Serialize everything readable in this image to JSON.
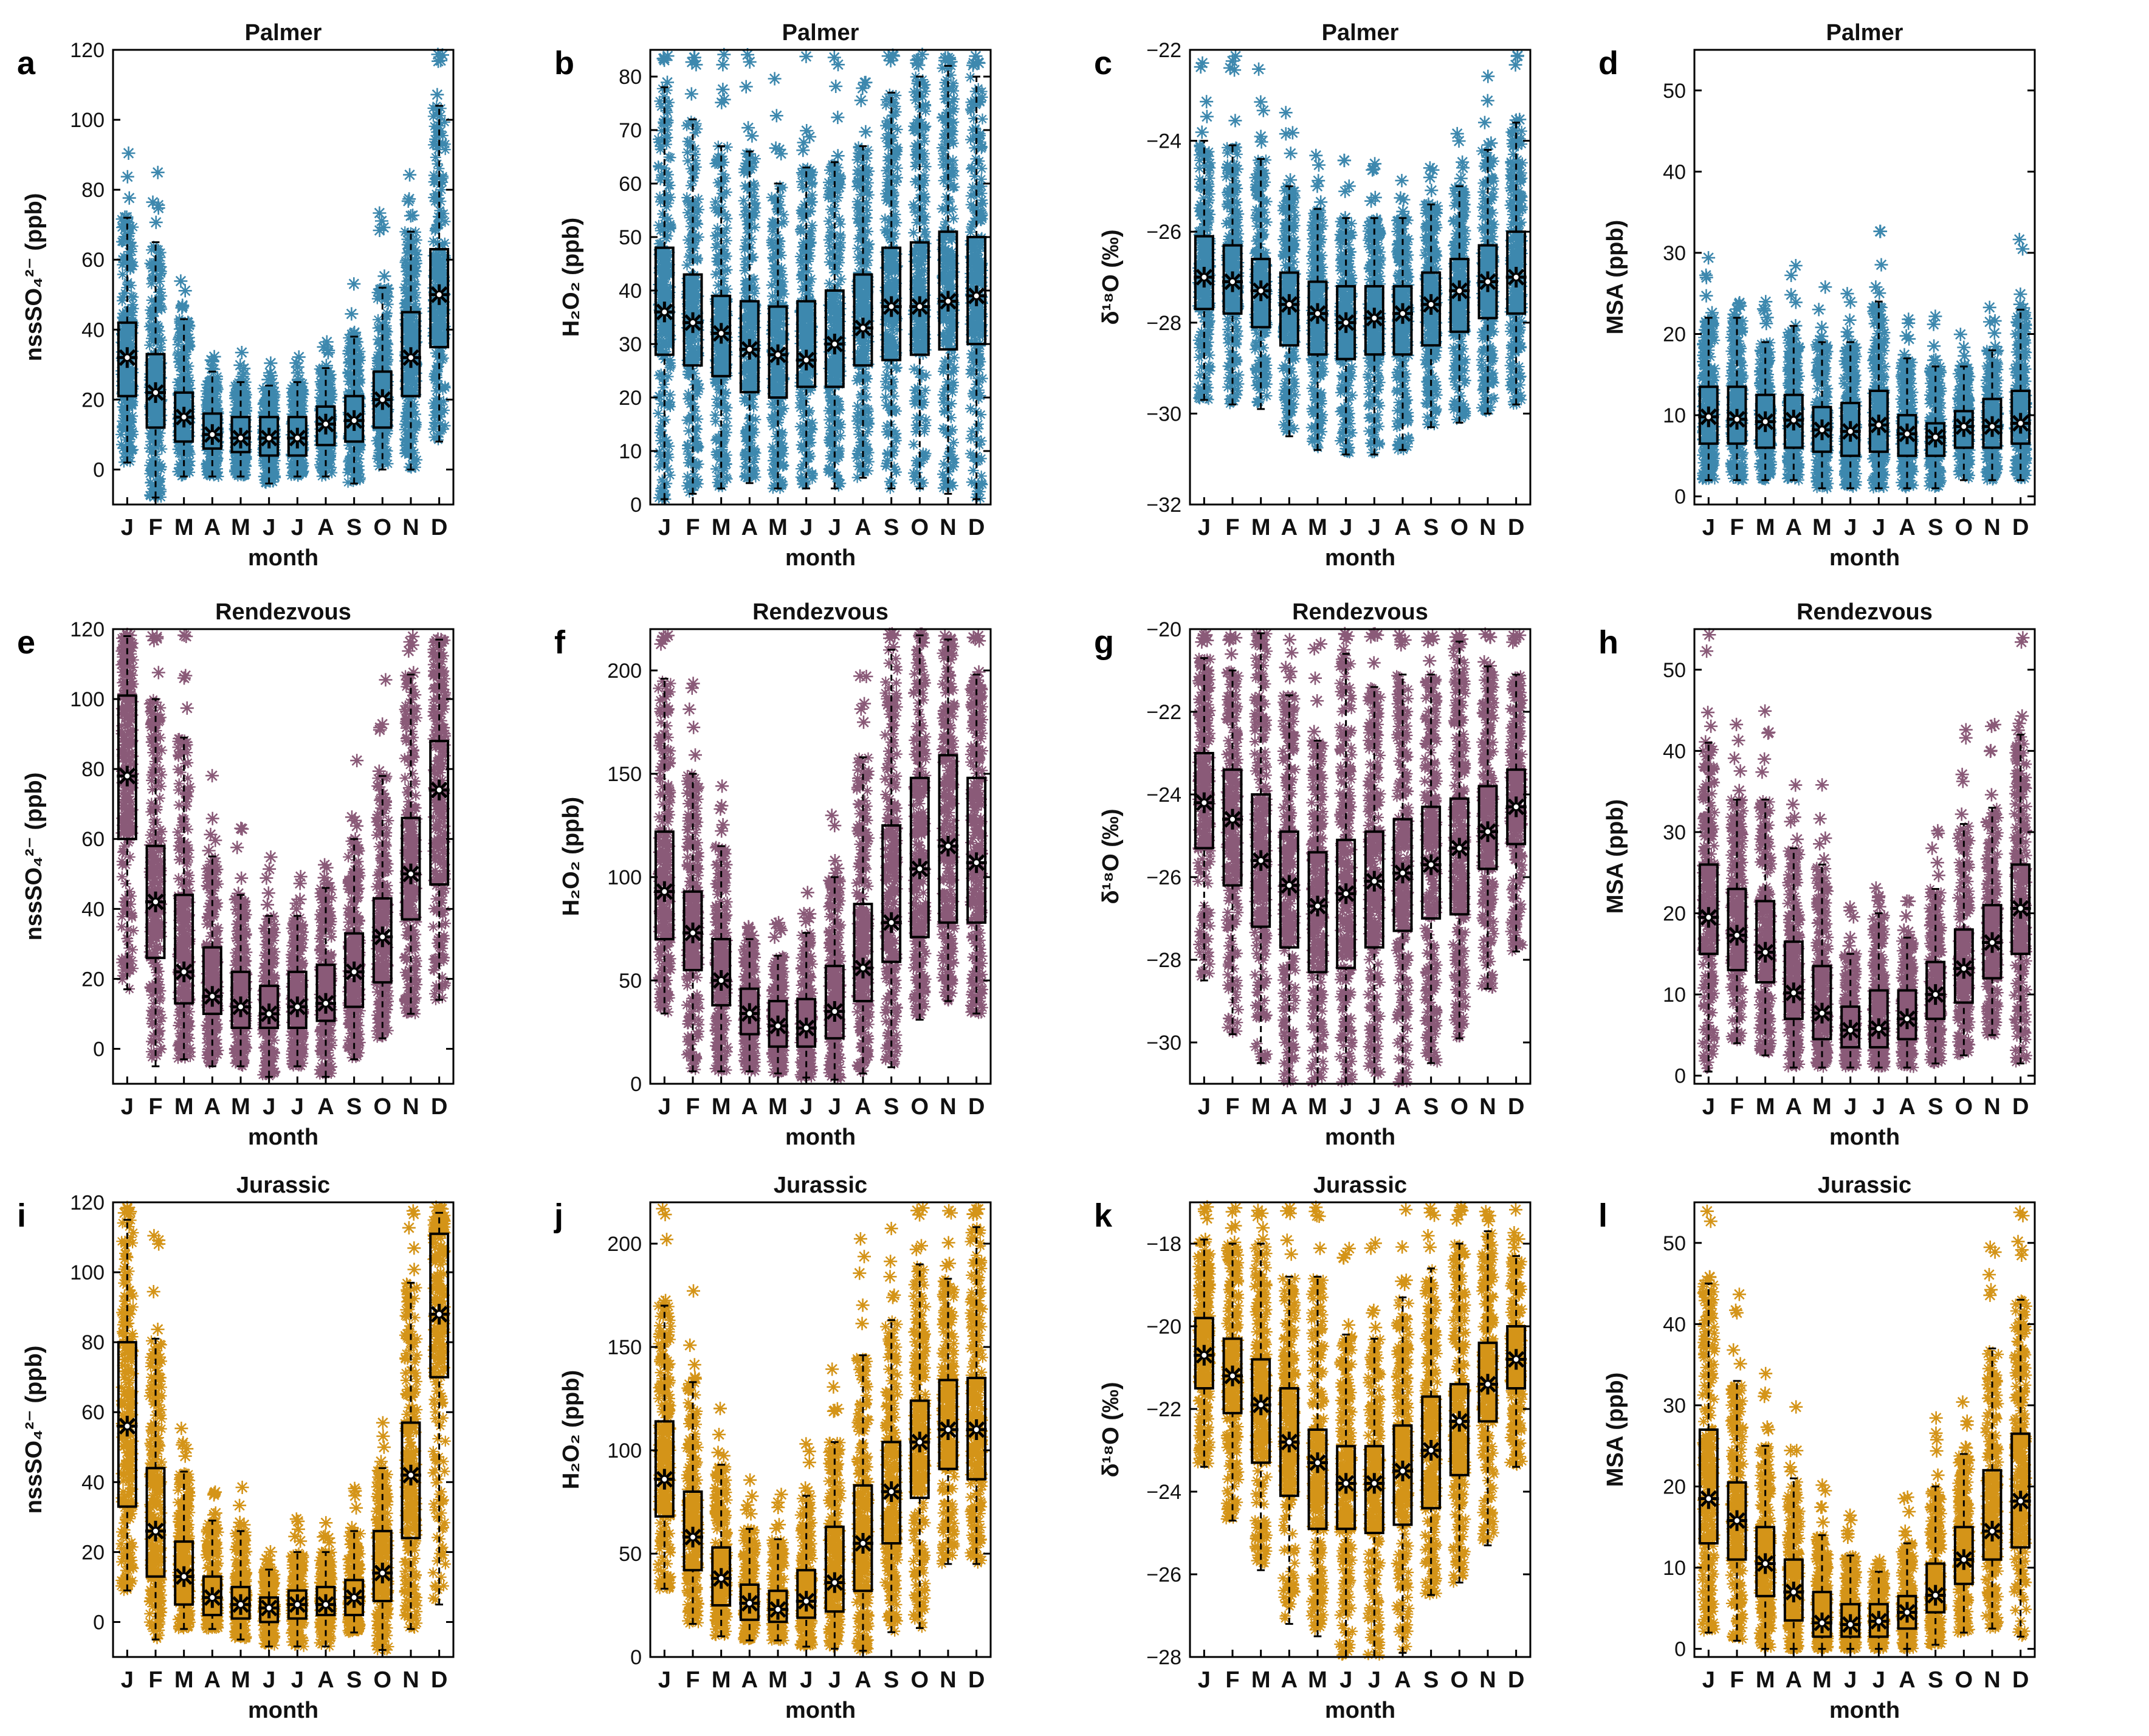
{
  "figure": {
    "xlabel": "month",
    "month_letters": [
      "J",
      "F",
      "M",
      "A",
      "M",
      "J",
      "J",
      "A",
      "S",
      "O",
      "N",
      "D"
    ],
    "sites": [
      {
        "name": "Palmer",
        "color": "#3d88ae"
      },
      {
        "name": "Rendezvous",
        "color": "#8a5a78"
      },
      {
        "name": "Jurassic",
        "color": "#d49418"
      }
    ]
  },
  "chart_data": [
    {
      "panel": "a",
      "type": "box",
      "title": "Palmer",
      "ylabel": "nssSO₄²⁻ (ppb)",
      "ylim": [
        -10,
        120
      ],
      "yticks": [
        0,
        20,
        40,
        60,
        80,
        100,
        120
      ],
      "color": "#3d88ae",
      "categories": [
        "J",
        "F",
        "M",
        "A",
        "M",
        "J",
        "J",
        "A",
        "S",
        "O",
        "N",
        "D"
      ],
      "q1": [
        21,
        12,
        8,
        6,
        5,
        4,
        4,
        7,
        8,
        12,
        21,
        35
      ],
      "median": [
        32,
        22,
        15,
        10,
        9,
        9,
        9,
        13,
        14,
        20,
        32,
        50
      ],
      "q3": [
        42,
        33,
        22,
        16,
        15,
        15,
        15,
        18,
        21,
        28,
        45,
        63
      ],
      "wlo": [
        2,
        -8,
        -2,
        -2,
        -2,
        -4,
        -2,
        -2,
        -4,
        0,
        0,
        8
      ],
      "whi": [
        72,
        65,
        43,
        28,
        25,
        24,
        25,
        29,
        38,
        52,
        68,
        104
      ]
    },
    {
      "panel": "b",
      "type": "box",
      "title": "Palmer",
      "ylabel": "H₂O₂ (ppb)",
      "ylim": [
        0,
        85
      ],
      "yticks": [
        0,
        10,
        20,
        30,
        40,
        50,
        60,
        70,
        80
      ],
      "color": "#3d88ae",
      "categories": [
        "J",
        "F",
        "M",
        "A",
        "M",
        "J",
        "J",
        "A",
        "S",
        "O",
        "N",
        "D"
      ],
      "q1": [
        28,
        26,
        24,
        21,
        20,
        22,
        22,
        26,
        27,
        28,
        29,
        30
      ],
      "median": [
        36,
        34,
        32,
        29,
        28,
        27,
        30,
        33,
        37,
        37,
        38,
        39
      ],
      "q3": [
        48,
        43,
        39,
        38,
        37,
        38,
        40,
        43,
        48,
        49,
        51,
        50
      ],
      "wlo": [
        1,
        2,
        3,
        4,
        3,
        3,
        3,
        5,
        3,
        3,
        2,
        1
      ],
      "whi": [
        78,
        72,
        67,
        66,
        60,
        63,
        64,
        67,
        77,
        80,
        82,
        80
      ]
    },
    {
      "panel": "c",
      "type": "box",
      "title": "Palmer",
      "ylabel": "δ¹⁸O (‰)",
      "ylim": [
        -32,
        -22
      ],
      "yticks": [
        -32,
        -30,
        -28,
        -26,
        -24,
        -22
      ],
      "color": "#3d88ae",
      "categories": [
        "J",
        "F",
        "M",
        "A",
        "M",
        "J",
        "J",
        "A",
        "S",
        "O",
        "N",
        "D"
      ],
      "q1": [
        -27.7,
        -27.8,
        -28.1,
        -28.5,
        -28.7,
        -28.8,
        -28.7,
        -28.7,
        -28.5,
        -28.2,
        -27.9,
        -27.8
      ],
      "median": [
        -27.0,
        -27.1,
        -27.3,
        -27.6,
        -27.8,
        -28.0,
        -27.9,
        -27.8,
        -27.6,
        -27.3,
        -27.1,
        -27.0
      ],
      "q3": [
        -26.1,
        -26.3,
        -26.6,
        -26.9,
        -27.1,
        -27.2,
        -27.2,
        -27.2,
        -26.9,
        -26.6,
        -26.3,
        -26.0
      ],
      "wlo": [
        -29.7,
        -29.8,
        -29.9,
        -30.5,
        -30.8,
        -30.9,
        -30.9,
        -30.8,
        -30.3,
        -30.2,
        -30.0,
        -29.8
      ],
      "whi": [
        -24.0,
        -24.1,
        -24.4,
        -25.0,
        -25.5,
        -25.7,
        -25.7,
        -25.7,
        -25.4,
        -25.0,
        -24.2,
        -23.6
      ]
    },
    {
      "panel": "d",
      "type": "box",
      "title": "Palmer",
      "ylabel": "MSA (ppb)",
      "ylim": [
        -1,
        55
      ],
      "yticks": [
        0,
        10,
        20,
        30,
        40,
        50
      ],
      "color": "#3d88ae",
      "categories": [
        "J",
        "F",
        "M",
        "A",
        "M",
        "J",
        "J",
        "A",
        "S",
        "O",
        "N",
        "D"
      ],
      "q1": [
        6.5,
        6.5,
        6.0,
        6.0,
        5.5,
        5.0,
        5.5,
        5.0,
        5.0,
        6.0,
        6.0,
        6.5
      ],
      "median": [
        9.8,
        9.5,
        9.2,
        9.4,
        8.2,
        8.0,
        8.8,
        7.7,
        7.3,
        8.6,
        8.6,
        9.0
      ],
      "q3": [
        13.5,
        13.5,
        12.5,
        12.5,
        11.0,
        11.5,
        13.0,
        10.0,
        9.0,
        10.5,
        12.0,
        13.0
      ],
      "wlo": [
        2,
        2,
        2,
        2,
        1,
        1,
        1,
        1,
        1,
        2,
        2,
        2
      ],
      "whi": [
        22,
        22,
        19,
        21,
        19,
        19,
        24,
        17,
        16,
        16,
        18,
        23
      ]
    },
    {
      "panel": "e",
      "type": "box",
      "title": "Rendezvous",
      "ylabel": "nssSO₄²⁻ (ppb)",
      "ylim": [
        -10,
        120
      ],
      "yticks": [
        0,
        20,
        40,
        60,
        80,
        100,
        120
      ],
      "color": "#8a5a78",
      "categories": [
        "J",
        "F",
        "M",
        "A",
        "M",
        "J",
        "J",
        "A",
        "S",
        "O",
        "N",
        "D"
      ],
      "q1": [
        60,
        26,
        13,
        10,
        6,
        6,
        6,
        8,
        12,
        19,
        37,
        47
      ],
      "median": [
        78,
        42,
        22,
        15,
        12,
        10,
        12,
        13,
        22,
        32,
        50,
        74
      ],
      "q3": [
        101,
        58,
        44,
        29,
        22,
        18,
        22,
        24,
        33,
        43,
        66,
        88
      ],
      "wlo": [
        17,
        -5,
        -3,
        -5,
        -5,
        -8,
        -5,
        -8,
        -3,
        3,
        10,
        14
      ],
      "whi": [
        118,
        100,
        89,
        55,
        44,
        38,
        38,
        46,
        60,
        78,
        107,
        117
      ]
    },
    {
      "panel": "f",
      "type": "box",
      "title": "Rendezvous",
      "ylabel": "H₂O₂ (ppb)",
      "ylim": [
        0,
        220
      ],
      "yticks": [
        0,
        50,
        100,
        150,
        200
      ],
      "color": "#8a5a78",
      "categories": [
        "J",
        "F",
        "M",
        "A",
        "M",
        "J",
        "J",
        "A",
        "S",
        "O",
        "N",
        "D"
      ],
      "q1": [
        70,
        55,
        38,
        24,
        18,
        18,
        22,
        40,
        59,
        71,
        78,
        78
      ],
      "median": [
        93,
        73,
        50,
        34,
        28,
        27,
        35,
        56,
        78,
        104,
        115,
        107
      ],
      "q3": [
        122,
        93,
        70,
        46,
        40,
        41,
        57,
        87,
        125,
        148,
        159,
        148
      ],
      "wlo": [
        34,
        6,
        6,
        6,
        5,
        3,
        2,
        5,
        8,
        31,
        40,
        34
      ],
      "whi": [
        196,
        150,
        115,
        70,
        62,
        73,
        100,
        158,
        210,
        217,
        215,
        198
      ]
    },
    {
      "panel": "g",
      "type": "box",
      "title": "Rendezvous",
      "ylabel": "δ¹⁸O (‰)",
      "ylim": [
        -31,
        -20
      ],
      "yticks": [
        -30,
        -28,
        -26,
        -24,
        -22,
        -20
      ],
      "color": "#8a5a78",
      "categories": [
        "J",
        "F",
        "M",
        "A",
        "M",
        "J",
        "J",
        "A",
        "S",
        "O",
        "N",
        "D"
      ],
      "q1": [
        -25.3,
        -26.2,
        -27.2,
        -27.7,
        -28.3,
        -28.2,
        -27.7,
        -27.3,
        -27.0,
        -26.9,
        -25.8,
        -25.2
      ],
      "median": [
        -24.2,
        -24.6,
        -25.6,
        -26.2,
        -26.7,
        -26.4,
        -26.1,
        -25.9,
        -25.7,
        -25.3,
        -24.9,
        -24.3
      ],
      "q3": [
        -23.0,
        -23.4,
        -24.0,
        -24.9,
        -25.4,
        -25.1,
        -24.9,
        -24.6,
        -24.3,
        -24.1,
        -23.8,
        -23.4
      ],
      "wlo": [
        -28.5,
        -29.8,
        -30.5,
        -31.0,
        -31.0,
        -31.0,
        -31.0,
        -31.0,
        -30.5,
        -29.9,
        -28.7,
        -27.8
      ],
      "whi": [
        -20.7,
        -21.0,
        -20.1,
        -21.6,
        -22.7,
        -20.6,
        -21.4,
        -21.1,
        -21.1,
        -20.3,
        -20.9,
        -21.1
      ]
    },
    {
      "panel": "h",
      "type": "box",
      "title": "Rendezvous",
      "ylabel": "MSA (ppb)",
      "ylim": [
        -1,
        55
      ],
      "yticks": [
        0,
        10,
        20,
        30,
        40,
        50
      ],
      "color": "#8a5a78",
      "categories": [
        "J",
        "F",
        "M",
        "A",
        "M",
        "J",
        "J",
        "A",
        "S",
        "O",
        "N",
        "D"
      ],
      "q1": [
        15,
        13,
        11.5,
        7,
        4.5,
        3.5,
        3.5,
        4.5,
        7,
        9,
        12,
        15
      ],
      "median": [
        19.5,
        17.3,
        15.2,
        10.2,
        7.7,
        5.6,
        5.8,
        7.0,
        10.0,
        13.2,
        16.4,
        20.6
      ],
      "q3": [
        26,
        23,
        21.5,
        16.5,
        13.5,
        8.5,
        10.5,
        10.5,
        14,
        18,
        21,
        26
      ],
      "wlo": [
        0.5,
        4,
        2.5,
        1,
        1,
        1,
        1,
        1,
        1.5,
        2.5,
        5,
        1.5
      ],
      "whi": [
        41,
        34,
        34,
        28,
        26,
        15,
        20,
        17,
        23,
        31,
        33,
        42
      ]
    },
    {
      "panel": "i",
      "type": "box",
      "title": "Jurassic",
      "ylabel": "nssSO₄²⁻ (ppb)",
      "ylim": [
        -10,
        120
      ],
      "yticks": [
        0,
        20,
        40,
        60,
        80,
        100,
        120
      ],
      "color": "#d49418",
      "categories": [
        "J",
        "F",
        "M",
        "A",
        "M",
        "J",
        "J",
        "A",
        "S",
        "O",
        "N",
        "D"
      ],
      "q1": [
        33,
        13,
        5,
        2,
        1,
        0,
        1,
        2,
        2,
        6,
        24,
        70
      ],
      "median": [
        56,
        26,
        13,
        7,
        5,
        4,
        5,
        5,
        7,
        14,
        42,
        88
      ],
      "q3": [
        80,
        44,
        23,
        13,
        10,
        7,
        9,
        10,
        12,
        26,
        57,
        111
      ],
      "wlo": [
        9,
        -5,
        -2,
        -2,
        -5,
        -7,
        -7,
        -7,
        -3,
        -8,
        -2,
        5
      ],
      "whi": [
        115,
        81,
        43,
        29,
        26,
        15,
        20,
        20,
        26,
        44,
        97,
        117
      ]
    },
    {
      "panel": "j",
      "type": "box",
      "title": "Jurassic",
      "ylabel": "H₂O₂ (ppb)",
      "ylim": [
        0,
        220
      ],
      "yticks": [
        0,
        50,
        100,
        150,
        200
      ],
      "color": "#d49418",
      "categories": [
        "J",
        "F",
        "M",
        "A",
        "M",
        "J",
        "J",
        "A",
        "S",
        "O",
        "N",
        "D"
      ],
      "q1": [
        68,
        42,
        25,
        18,
        17,
        19,
        22,
        32,
        55,
        77,
        91,
        86
      ],
      "median": [
        86,
        58,
        38,
        26,
        23,
        27,
        36,
        55,
        80,
        104,
        110,
        110
      ],
      "q3": [
        114,
        80,
        53,
        35,
        32,
        42,
        63,
        83,
        104,
        124,
        134,
        135
      ],
      "wlo": [
        33,
        16,
        10,
        8,
        8,
        5,
        4,
        3,
        12,
        14,
        45,
        45
      ],
      "whi": [
        170,
        133,
        93,
        62,
        57,
        78,
        104,
        146,
        163,
        190,
        183,
        208
      ]
    },
    {
      "panel": "k",
      "type": "box",
      "title": "Jurassic",
      "ylabel": "δ¹⁸O (‰)",
      "ylim": [
        -28,
        -17
      ],
      "yticks": [
        -28,
        -26,
        -24,
        -22,
        -20,
        -18
      ],
      "color": "#d49418",
      "categories": [
        "J",
        "F",
        "M",
        "A",
        "M",
        "J",
        "J",
        "A",
        "S",
        "O",
        "N",
        "D"
      ],
      "q1": [
        -21.5,
        -22.1,
        -23.3,
        -24.1,
        -24.9,
        -24.9,
        -25.0,
        -24.8,
        -24.4,
        -23.6,
        -22.3,
        -21.5
      ],
      "median": [
        -20.7,
        -21.2,
        -21.9,
        -22.8,
        -23.3,
        -23.8,
        -23.8,
        -23.5,
        -23.0,
        -22.3,
        -21.4,
        -20.8
      ],
      "q3": [
        -19.8,
        -20.3,
        -20.8,
        -21.5,
        -22.5,
        -22.9,
        -22.9,
        -22.4,
        -21.7,
        -21.4,
        -20.4,
        -20.0
      ],
      "wlo": [
        -23.4,
        -24.7,
        -25.9,
        -27.2,
        -27.5,
        -28.0,
        -28.0,
        -27.9,
        -26.5,
        -26.2,
        -25.3,
        -23.4
      ],
      "whi": [
        -17.9,
        -18.0,
        -18.0,
        -18.8,
        -18.8,
        -20.2,
        -20.3,
        -19.3,
        -18.6,
        -18.0,
        -17.7,
        -18.3
      ]
    },
    {
      "panel": "l",
      "type": "box",
      "title": "Jurassic",
      "ylabel": "MSA (ppb)",
      "ylim": [
        -1,
        55
      ],
      "yticks": [
        0,
        10,
        20,
        30,
        40,
        50
      ],
      "color": "#d49418",
      "categories": [
        "J",
        "F",
        "M",
        "A",
        "M",
        "J",
        "J",
        "A",
        "S",
        "O",
        "N",
        "D"
      ],
      "q1": [
        13,
        11,
        6.5,
        3.5,
        1.5,
        1.5,
        1.5,
        2.5,
        4.5,
        8,
        11,
        12.5
      ],
      "median": [
        18.5,
        15.8,
        10.5,
        7.0,
        3.2,
        3.0,
        3.4,
        4.5,
        6.6,
        11.0,
        14.5,
        18.2
      ],
      "q3": [
        27,
        20.5,
        15,
        11,
        7,
        5.5,
        5.5,
        6.5,
        10.5,
        15,
        22,
        26.5
      ],
      "wlo": [
        2,
        1,
        0,
        0,
        0,
        0,
        0,
        0,
        0.5,
        2,
        2.5,
        1.5
      ],
      "whi": [
        45,
        33,
        25,
        21,
        14,
        11.5,
        9.5,
        13,
        20,
        24,
        37,
        43
      ]
    }
  ]
}
